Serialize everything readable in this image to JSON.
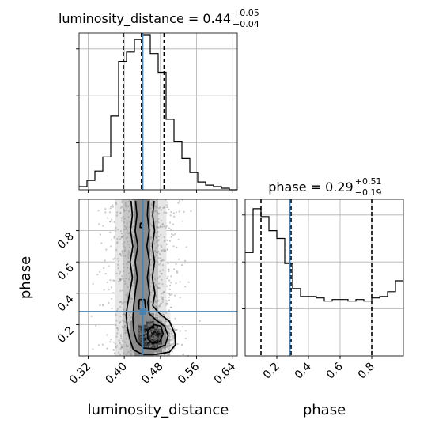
{
  "chart_data": {
    "type": "corner",
    "truth_color": "#4682b4",
    "parameters": [
      {
        "key": "luminosity_distance",
        "label": "luminosity_distance",
        "title": {
          "prefix": "luminosity_distance = 0.44",
          "plus": "+0.05",
          "minus": "−0.04"
        },
        "range": [
          0.3,
          0.65
        ],
        "ticks": [
          0.32,
          0.4,
          0.48,
          0.56,
          0.64
        ],
        "tick_labels": [
          "0.32",
          "0.40",
          "0.48",
          "0.56",
          "0.64"
        ],
        "truth": 0.441,
        "quantiles": [
          0.398,
          0.438,
          0.488
        ],
        "histogram": {
          "edges": [
            0.3,
            0.3175,
            0.335,
            0.3525,
            0.37,
            0.3875,
            0.405,
            0.4225,
            0.44,
            0.4575,
            0.475,
            0.4925,
            0.51,
            0.5275,
            0.545,
            0.5625,
            0.58,
            0.5975,
            0.615,
            0.6325,
            0.65
          ],
          "counts": [
            0.02,
            0.06,
            0.12,
            0.21,
            0.47,
            0.82,
            0.88,
            0.96,
            0.99,
            0.87,
            0.75,
            0.45,
            0.31,
            0.2,
            0.11,
            0.05,
            0.03,
            0.02,
            0.01,
            0.0
          ]
        }
      },
      {
        "key": "phase",
        "label": "phase",
        "title": {
          "prefix": "phase = 0.29",
          "plus": "+0.51",
          "minus": "−0.19"
        },
        "range": [
          0.0,
          1.0
        ],
        "ticks": [
          0.2,
          0.4,
          0.6,
          0.8
        ],
        "tick_labels": [
          "0.2",
          "0.4",
          "0.6",
          "0.8"
        ],
        "truth": 0.283,
        "quantiles": [
          0.1,
          0.29,
          0.8
        ],
        "histogram": {
          "edges": [
            0.0,
            0.05,
            0.1,
            0.15,
            0.2,
            0.25,
            0.3,
            0.35,
            0.4,
            0.45,
            0.5,
            0.55,
            0.6,
            0.65,
            0.7,
            0.75,
            0.8,
            0.85,
            0.9,
            0.95,
            1.0
          ],
          "counts": [
            0.66,
            0.94,
            0.89,
            0.8,
            0.75,
            0.59,
            0.43,
            0.38,
            0.38,
            0.37,
            0.35,
            0.36,
            0.36,
            0.35,
            0.36,
            0.35,
            0.37,
            0.38,
            0.41,
            0.48
          ]
        }
      }
    ],
    "marginal_ylim": [
      0,
      1.0
    ],
    "marginal_yticks": [
      0.0,
      0.3,
      0.6,
      0.9
    ],
    "truth_marker": [
      0.441,
      0.283
    ]
  }
}
